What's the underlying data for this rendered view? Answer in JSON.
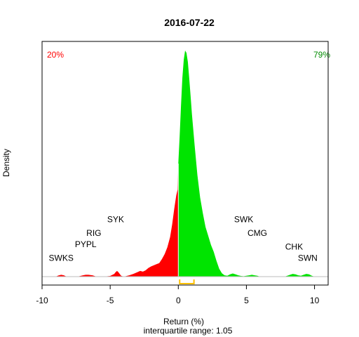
{
  "chart_data": {
    "type": "area",
    "title": "2016-07-22",
    "xlabel": "Return (%)",
    "ylabel": "Density",
    "subtitle": "interquartile range: 1.05",
    "xlim": [
      -10,
      11
    ],
    "xticks": [
      -10,
      -5,
      0,
      5,
      10
    ],
    "ylim": [
      0,
      1
    ],
    "pct_negative": "20%",
    "pct_positive": "79%",
    "colors": {
      "negative": "#ff0000",
      "positive": "#00e400",
      "iqr": "#ffc000",
      "baseline": "#bebebe"
    },
    "iqr": [
      0.1,
      1.15
    ],
    "density": {
      "x": [
        -9.9,
        -9.0,
        -8.8,
        -8.6,
        -8.4,
        -8.2,
        -7.4,
        -7.0,
        -6.8,
        -6.6,
        -6.3,
        -6.0,
        -5.5,
        -5.0,
        -4.7,
        -4.6,
        -4.5,
        -4.4,
        -4.3,
        -4.2,
        -4.0,
        -3.6,
        -3.3,
        -3.0,
        -2.8,
        -2.6,
        -2.4,
        -2.2,
        -2.0,
        -1.8,
        -1.6,
        -1.4,
        -1.2,
        -1.0,
        -0.8,
        -0.6,
        -0.45,
        -0.3,
        -0.15,
        -0.05,
        0.0,
        0.1,
        0.2,
        0.3,
        0.4,
        0.5,
        0.6,
        0.7,
        0.8,
        0.9,
        1.0,
        1.2,
        1.4,
        1.6,
        1.8,
        2.0,
        2.2,
        2.4,
        2.6,
        2.8,
        3.0,
        3.2,
        3.4,
        3.6,
        3.8,
        4.0,
        4.2,
        4.4,
        4.6,
        4.8,
        5.0,
        5.2,
        5.4,
        5.6,
        5.8,
        6.0,
        6.4,
        7.0,
        7.8,
        8.0,
        8.2,
        8.4,
        8.6,
        8.8,
        9.0,
        9.2,
        9.4,
        9.6,
        9.8,
        10.0,
        10.4,
        11.0
      ],
      "y": [
        0.0,
        0.0,
        0.005,
        0.008,
        0.006,
        0.0,
        0.0,
        0.006,
        0.008,
        0.008,
        0.006,
        0.0,
        0.0,
        0.003,
        0.012,
        0.02,
        0.025,
        0.02,
        0.012,
        0.004,
        0.0,
        0.006,
        0.012,
        0.02,
        0.025,
        0.022,
        0.028,
        0.038,
        0.045,
        0.05,
        0.055,
        0.06,
        0.078,
        0.1,
        0.13,
        0.175,
        0.23,
        0.3,
        0.36,
        0.385,
        0.5,
        0.62,
        0.76,
        0.88,
        0.96,
        1.0,
        0.99,
        0.95,
        0.88,
        0.8,
        0.72,
        0.58,
        0.45,
        0.35,
        0.28,
        0.22,
        0.18,
        0.14,
        0.11,
        0.07,
        0.035,
        0.015,
        0.006,
        0.004,
        0.01,
        0.014,
        0.01,
        0.006,
        0.003,
        0.002,
        0.004,
        0.006,
        0.008,
        0.006,
        0.004,
        0.0,
        0.0,
        0.0,
        0.0,
        0.004,
        0.008,
        0.012,
        0.01,
        0.006,
        0.004,
        0.008,
        0.012,
        0.01,
        0.004,
        0.0,
        0.0,
        0.0
      ]
    },
    "annotations": [
      {
        "text": "SWKS",
        "x": -8.6,
        "y": 0.07
      },
      {
        "text": "PYPL",
        "x": -6.8,
        "y": 0.13
      },
      {
        "text": "RIG",
        "x": -6.2,
        "y": 0.18
      },
      {
        "text": "SYK",
        "x": -4.6,
        "y": 0.24
      },
      {
        "text": "SWK",
        "x": 4.8,
        "y": 0.24
      },
      {
        "text": "CMG",
        "x": 5.8,
        "y": 0.18
      },
      {
        "text": "CHK",
        "x": 8.5,
        "y": 0.12
      },
      {
        "text": "SWN",
        "x": 9.5,
        "y": 0.07
      }
    ]
  }
}
